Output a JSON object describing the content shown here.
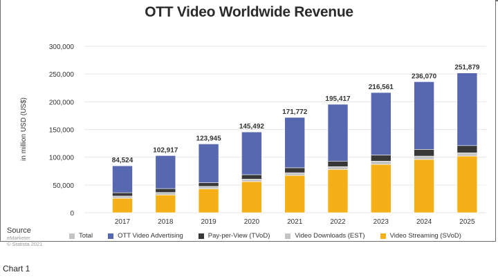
{
  "caption": "Chart 1",
  "source": {
    "heading": "Source",
    "line1": "eMarketer",
    "line2": "© Statista 2021"
  },
  "chart_data": {
    "type": "bar",
    "stacked": true,
    "title": "OTT Video Worldwide Revenue",
    "xlabel": "",
    "ylabel": "in million USD (US$)",
    "ylim": [
      0,
      300000
    ],
    "yticks": [
      0,
      50000,
      100000,
      150000,
      200000,
      250000,
      300000
    ],
    "ytick_labels": [
      "0",
      "50,000",
      "100,000",
      "150,000",
      "200,000",
      "250,000",
      "300,000"
    ],
    "grid": true,
    "legend_position": "bottom",
    "categories": [
      "2017",
      "2018",
      "2019",
      "2020",
      "2021",
      "2022",
      "2023",
      "2024",
      "2025"
    ],
    "totals": [
      84524,
      102917,
      123945,
      145492,
      171772,
      195417,
      216561,
      236070,
      251879
    ],
    "total_labels": [
      "84,524",
      "102,917",
      "123,945",
      "145,492",
      "171,772",
      "195,417",
      "216,561",
      "236,070",
      "251,879"
    ],
    "legend": [
      {
        "name": "Total",
        "color": "#c4c4c4"
      },
      {
        "name": "OTT Video Advertising",
        "color": "#5768b0"
      },
      {
        "name": "Pay-per-View (TVoD)",
        "color": "#383838"
      },
      {
        "name": "Video Downloads (EST)",
        "color": "#c4c4c4"
      },
      {
        "name": "Video Streaming (SVoD)",
        "color": "#f6b017"
      }
    ],
    "series": [
      {
        "name": "Video Streaming (SVoD)",
        "color": "#f6b017",
        "values": [
          26000,
          32000,
          43000,
          56000,
          67000,
          78000,
          87000,
          96000,
          102000
        ]
      },
      {
        "name": "Video Downloads (EST)",
        "color": "#c4c4c4",
        "values": [
          4000,
          4500,
          4500,
          4500,
          5000,
          5000,
          6000,
          6000,
          6000
        ]
      },
      {
        "name": "Pay-per-View (TVoD)",
        "color": "#383838",
        "values": [
          6000,
          7000,
          6500,
          8000,
          9000,
          10000,
          11000,
          12000,
          13000
        ]
      },
      {
        "name": "OTT Video Advertising",
        "color": "#5768b0",
        "values": [
          48524,
          59417,
          69945,
          76992,
          90772,
          102417,
          112561,
          122070,
          130879
        ]
      }
    ]
  }
}
